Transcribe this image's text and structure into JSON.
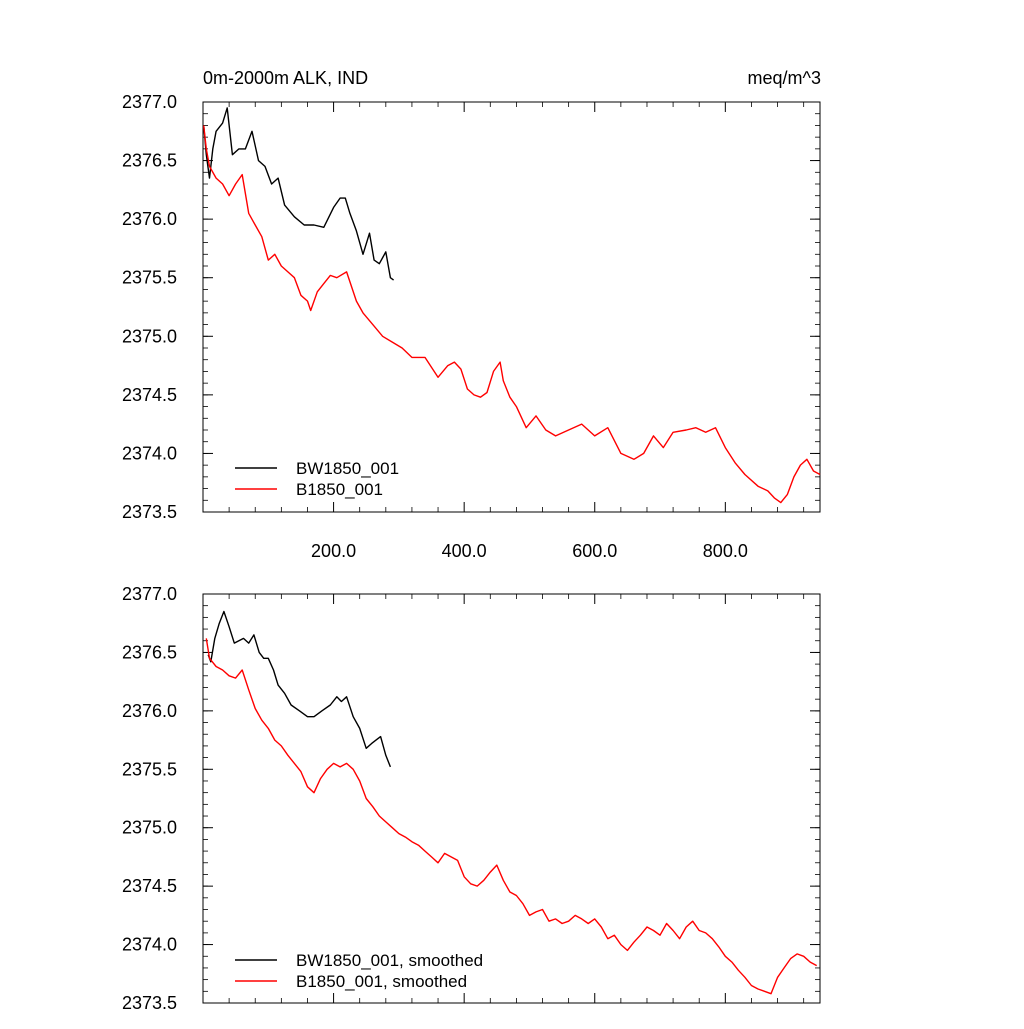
{
  "chart_data": [
    {
      "type": "line",
      "title_left": "0m-2000m ALK, IND",
      "title_right": "meq/m^3",
      "xlim": [
        0,
        945
      ],
      "ylim": [
        2373.5,
        2377.0
      ],
      "x_ticks": [
        200,
        400,
        600,
        800
      ],
      "x_tick_labels": [
        "200.0",
        "400.0",
        "600.0",
        "800.0"
      ],
      "y_ticks": [
        2373.5,
        2374.0,
        2374.5,
        2375.0,
        2375.5,
        2376.0,
        2376.5,
        2377.0
      ],
      "y_tick_labels": [
        "2373.5",
        "2374.0",
        "2374.5",
        "2375.0",
        "2375.5",
        "2376.0",
        "2376.5",
        "2377.0"
      ],
      "legend_position": "bottom-left",
      "series": [
        {
          "name": "BW1850_001",
          "color": "#000000",
          "x": [
            1,
            5,
            10,
            15,
            20,
            30,
            37,
            45,
            55,
            65,
            75,
            85,
            95,
            105,
            115,
            125,
            140,
            155,
            170,
            185,
            200,
            210,
            218,
            225,
            235,
            245,
            255,
            262,
            270,
            280,
            287,
            292
          ],
          "y": [
            2376.8,
            2376.55,
            2376.35,
            2376.6,
            2376.75,
            2376.82,
            2376.95,
            2376.55,
            2376.6,
            2376.6,
            2376.75,
            2376.5,
            2376.45,
            2376.3,
            2376.35,
            2376.12,
            2376.02,
            2375.95,
            2375.95,
            2375.93,
            2376.1,
            2376.18,
            2376.18,
            2376.05,
            2375.9,
            2375.7,
            2375.88,
            2375.65,
            2375.62,
            2375.72,
            2375.5,
            2375.48
          ]
        },
        {
          "name": "B1850_001",
          "color": "#ff0000",
          "x": [
            1,
            5,
            10,
            20,
            30,
            40,
            50,
            60,
            70,
            80,
            90,
            100,
            110,
            120,
            130,
            140,
            150,
            160,
            165,
            175,
            185,
            195,
            205,
            220,
            235,
            245,
            260,
            275,
            290,
            305,
            320,
            340,
            360,
            375,
            385,
            395,
            405,
            415,
            425,
            435,
            445,
            455,
            460,
            470,
            480,
            495,
            510,
            525,
            540,
            560,
            580,
            600,
            620,
            640,
            660,
            675,
            690,
            705,
            720,
            740,
            755,
            770,
            785,
            800,
            815,
            830,
            850,
            865,
            875,
            885,
            895,
            905,
            915,
            925,
            935,
            945
          ],
          "y": [
            2376.8,
            2376.6,
            2376.45,
            2376.35,
            2376.3,
            2376.2,
            2376.3,
            2376.38,
            2376.05,
            2375.95,
            2375.85,
            2375.65,
            2375.7,
            2375.6,
            2375.55,
            2375.5,
            2375.35,
            2375.3,
            2375.22,
            2375.38,
            2375.45,
            2375.52,
            2375.5,
            2375.55,
            2375.3,
            2375.2,
            2375.1,
            2375.0,
            2374.95,
            2374.9,
            2374.82,
            2374.82,
            2374.65,
            2374.75,
            2374.78,
            2374.72,
            2374.55,
            2374.5,
            2374.48,
            2374.52,
            2374.7,
            2374.78,
            2374.62,
            2374.48,
            2374.4,
            2374.22,
            2374.32,
            2374.2,
            2374.15,
            2374.2,
            2374.25,
            2374.15,
            2374.22,
            2374.0,
            2373.95,
            2374.0,
            2374.15,
            2374.05,
            2374.18,
            2374.2,
            2374.22,
            2374.18,
            2374.22,
            2374.05,
            2373.92,
            2373.82,
            2373.72,
            2373.68,
            2373.62,
            2373.58,
            2373.65,
            2373.8,
            2373.9,
            2373.95,
            2373.85,
            2373.82
          ]
        }
      ]
    },
    {
      "type": "line",
      "xlim": [
        0,
        945
      ],
      "ylim": [
        2373.5,
        2377.0
      ],
      "y_ticks": [
        2373.5,
        2374.0,
        2374.5,
        2375.0,
        2375.5,
        2376.0,
        2376.5,
        2377.0
      ],
      "y_tick_labels": [
        "2373.5",
        "2374.0",
        "2374.5",
        "2375.0",
        "2375.5",
        "2376.0",
        "2376.5",
        "2377.0"
      ],
      "legend_position": "bottom-left",
      "series": [
        {
          "name": "BW1850_001, smoothed",
          "color": "#000000",
          "x": [
            8,
            12,
            18,
            25,
            32,
            40,
            48,
            55,
            62,
            70,
            78,
            86,
            93,
            100,
            108,
            115,
            125,
            135,
            148,
            160,
            170,
            182,
            195,
            205,
            212,
            220,
            230,
            240,
            250,
            258,
            265,
            272,
            280,
            287
          ],
          "y": [
            2376.48,
            2376.42,
            2376.62,
            2376.75,
            2376.85,
            2376.72,
            2376.58,
            2376.6,
            2376.62,
            2376.58,
            2376.65,
            2376.5,
            2376.45,
            2376.45,
            2376.35,
            2376.22,
            2376.15,
            2376.05,
            2376.0,
            2375.95,
            2375.95,
            2376.0,
            2376.05,
            2376.12,
            2376.08,
            2376.12,
            2375.95,
            2375.85,
            2375.68,
            2375.72,
            2375.75,
            2375.78,
            2375.62,
            2375.52
          ]
        },
        {
          "name": "B1850_001, smoothed",
          "color": "#ff0000",
          "x": [
            5,
            10,
            20,
            30,
            40,
            50,
            60,
            70,
            80,
            90,
            100,
            110,
            120,
            130,
            140,
            150,
            160,
            170,
            180,
            190,
            200,
            210,
            220,
            230,
            240,
            250,
            260,
            270,
            280,
            290,
            300,
            310,
            320,
            330,
            340,
            350,
            360,
            370,
            380,
            390,
            400,
            410,
            420,
            430,
            440,
            450,
            460,
            470,
            480,
            490,
            500,
            510,
            520,
            530,
            540,
            550,
            560,
            570,
            580,
            590,
            600,
            610,
            620,
            630,
            640,
            650,
            660,
            670,
            680,
            690,
            700,
            710,
            720,
            730,
            740,
            750,
            760,
            770,
            780,
            790,
            800,
            810,
            820,
            830,
            840,
            850,
            860,
            870,
            880,
            890,
            900,
            910,
            920,
            930,
            940
          ],
          "y": [
            2376.62,
            2376.45,
            2376.38,
            2376.35,
            2376.3,
            2376.28,
            2376.35,
            2376.18,
            2376.02,
            2375.92,
            2375.85,
            2375.75,
            2375.7,
            2375.62,
            2375.55,
            2375.48,
            2375.35,
            2375.3,
            2375.42,
            2375.5,
            2375.55,
            2375.52,
            2375.55,
            2375.5,
            2375.4,
            2375.25,
            2375.18,
            2375.1,
            2375.05,
            2375.0,
            2374.95,
            2374.92,
            2374.88,
            2374.85,
            2374.8,
            2374.75,
            2374.7,
            2374.78,
            2374.75,
            2374.72,
            2374.58,
            2374.52,
            2374.5,
            2374.55,
            2374.62,
            2374.68,
            2374.55,
            2374.45,
            2374.42,
            2374.35,
            2374.25,
            2374.28,
            2374.3,
            2374.2,
            2374.22,
            2374.18,
            2374.2,
            2374.25,
            2374.22,
            2374.18,
            2374.22,
            2374.15,
            2374.05,
            2374.08,
            2374.0,
            2373.95,
            2374.02,
            2374.08,
            2374.15,
            2374.12,
            2374.08,
            2374.18,
            2374.12,
            2374.05,
            2374.15,
            2374.2,
            2374.12,
            2374.1,
            2374.05,
            2373.98,
            2373.9,
            2373.85,
            2373.78,
            2373.72,
            2373.65,
            2373.62,
            2373.6,
            2373.58,
            2373.72,
            2373.8,
            2373.88,
            2373.92,
            2373.9,
            2373.85,
            2373.82
          ]
        }
      ]
    }
  ]
}
